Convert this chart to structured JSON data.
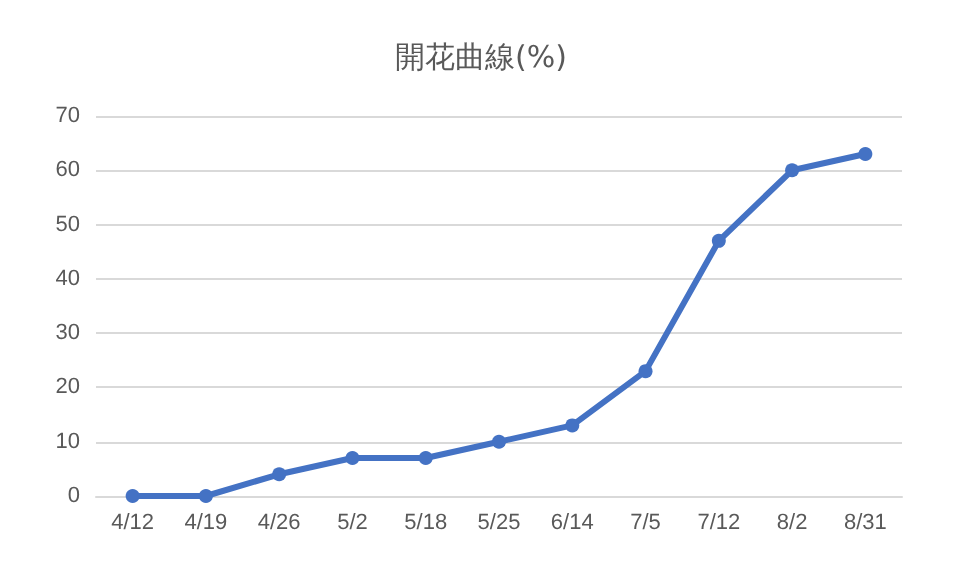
{
  "chart_data": {
    "type": "line",
    "title": "開花曲線(%)",
    "categories": [
      "4/12",
      "4/19",
      "4/26",
      "5/2",
      "5/18",
      "5/25",
      "6/14",
      "7/5",
      "7/12",
      "8/2",
      "8/31"
    ],
    "series": [
      {
        "color": "#4472c4",
        "values": [
          0,
          0,
          4,
          7,
          7,
          10,
          13,
          23,
          47,
          60,
          63
        ]
      }
    ],
    "ylim": [
      0,
      70
    ],
    "yticks": [
      0,
      10,
      20,
      30,
      40,
      50,
      60,
      70
    ],
    "grid": "y",
    "marker": "circle",
    "line_style": "solid"
  }
}
